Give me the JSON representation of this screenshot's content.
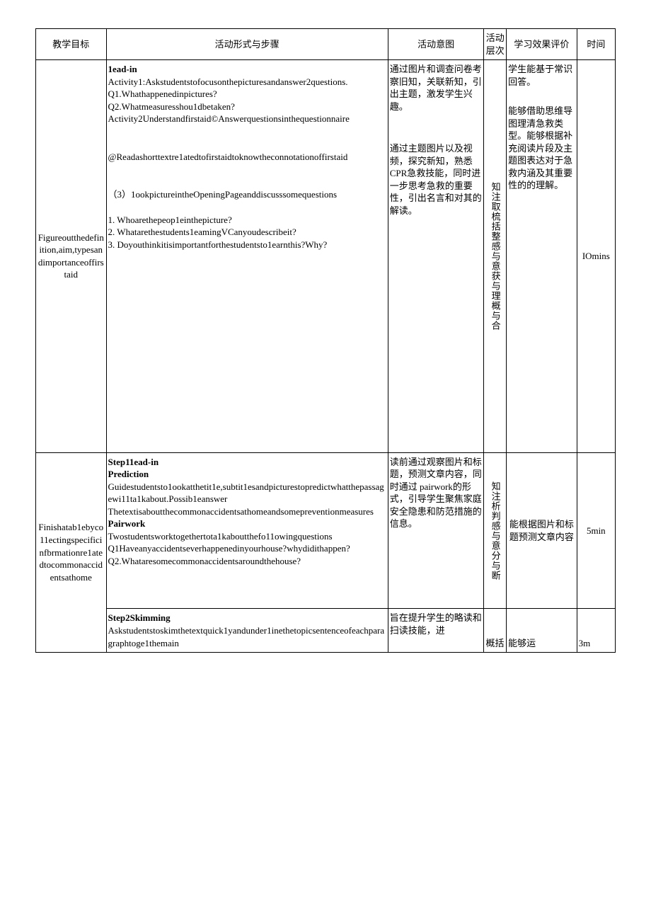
{
  "table": {
    "border_color": "#000000",
    "background_color": "#ffffff",
    "text_color": "#000000",
    "font_size_pt": 10,
    "header": {
      "c1": "教学目标",
      "c2": "活动形式与步骤",
      "c3": "活动意图",
      "c4": "活动层次",
      "c5": "学习效果评价",
      "c6": "时间"
    },
    "row1": {
      "goal": "Figureoutthedefinition,aim,typesandimportanceoffirstaid",
      "steps_title": "1ead-in",
      "steps_a1_l1": "Activity1:Askstudentstofocusonthepicturesandanswer2questions.",
      "steps_a1_q1": "Q1.Whathappenedinpictures?",
      "steps_a1_q2": "Q2.Whatmeasuresshou1dbetaken?",
      "steps_a2_l1": "Activity2Understandfirstaid©Answerquestionsinthequestionnaire",
      "steps_at": "@Readashorttextre1atedtofirstaidtoknowtheconnotationoffirstaid",
      "steps_b3": "（3）1ookpictureintheOpeningPageanddiscusssomequestions",
      "steps_q1": "1. Whoarethepeop1einthepicture?",
      "steps_q2": "2. Whatarethestudents1eamingVCanyoudescribeit?",
      "steps_q3": "3. Doyouthinkitisimportantforthestudentsto1earnthis?Why?",
      "intent_p1": "通过图片和调查问卷考察旧知，关联新知，引出主题，激发学生兴趣。",
      "intent_p2": "通过主题图片以及视频，探究新知，熟悉 CPR急救技能，同时进一步思考急救的重要性，引出名言和对其的解读。",
      "level": "知注取梳括整感与意获与理概与合",
      "eval_p1": "学生能基于常识回答。",
      "eval_p2": "能够借助思维导图理清急救类型。能够根据补充阅读片段及主题图表达对于急救内涵及其重要性的的理解。",
      "time": "IOmins"
    },
    "row2": {
      "goal": "Finishatab1ebyco11ectingspecificinfbrmationre1atedtocommonaccidentsathome",
      "steps_title1": "Step11ead-in",
      "steps_title2": "Prediction",
      "steps_l1": "Guidestudentsto1ookatthetit1e,subtit1esandpicturestopredictwhatthepassagewi11ta1kabout.Possib1eanswer",
      "steps_l2": "Thetextisaboutthecommonaccidentsathomeandsomepreventionmeasures",
      "steps_title3": "Pairwork",
      "steps_l3": "Twostudentsworktogethertota1kaboutthefo11owingquestions",
      "steps_q1": "Q1Haveanyaccidentseverhappenedinyourhouse?whydidithappen?",
      "steps_q2": "Q2.Whataresomecommonaccidentsaroundthehouse?",
      "intent": "读前通过观察图片和标题，预测文章内容，同时通过 pairwork的形式，引导学生聚焦家庭安全隐患和防范措施的信息。",
      "level": "知注析判感与意分与断",
      "eval": "能根据图片和标题预测文章内容",
      "time": "5min"
    },
    "row3": {
      "steps_title": "Step2Skimming",
      "steps_l1": "Askstudentstoskimthetextquick1yandunder1inethetopicsentenceofeachparagraphtoge1themain",
      "intent": "旨在提升学生的略读和扫读技能，进",
      "level": "概括",
      "eval": "能够运",
      "time": "3m"
    }
  }
}
